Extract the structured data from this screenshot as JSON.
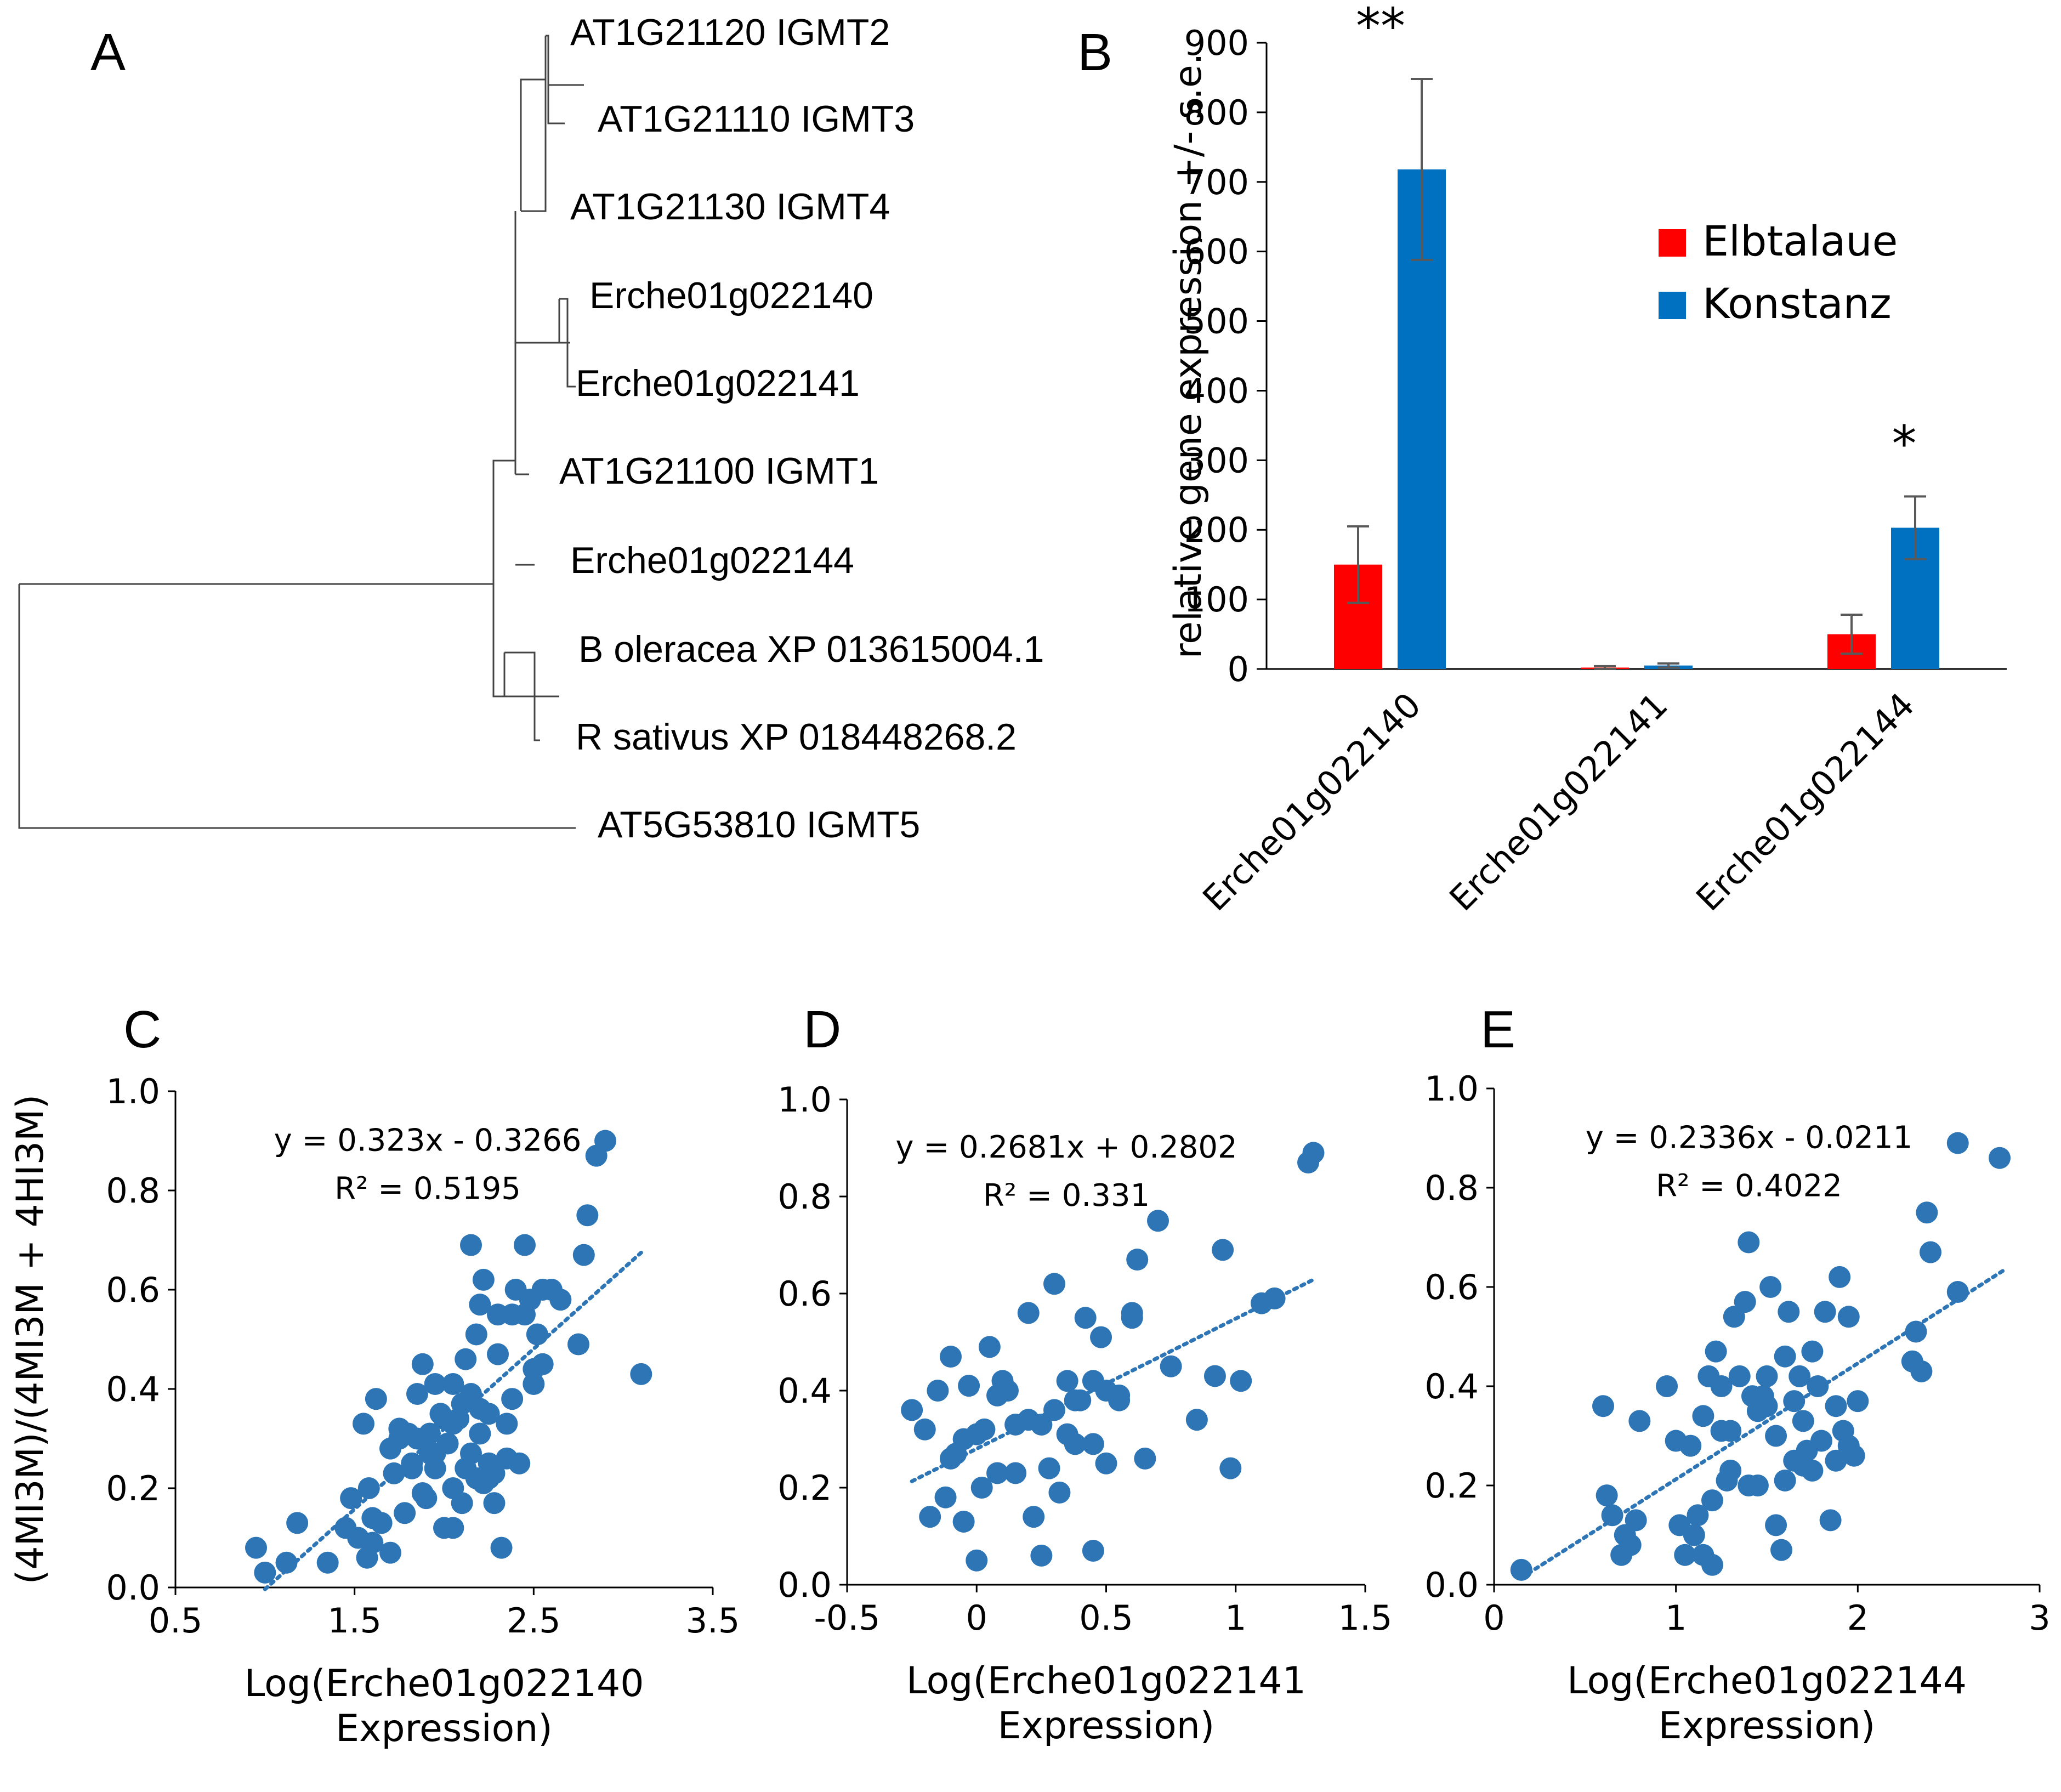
{
  "panels": {
    "a": {
      "letter": "A"
    },
    "b": {
      "letter": "B"
    },
    "c": {
      "letter": "C"
    },
    "d": {
      "letter": "D"
    },
    "e": {
      "letter": "E"
    }
  },
  "tree": {
    "leaves": [
      "AT1G21120 IGMT2",
      "AT1G21110 IGMT3",
      "AT1G21130 IGMT4",
      "Erche01g022140",
      "Erche01g022141",
      "AT1G21100 IGMT1",
      "Erche01g022144",
      "B oleracea XP 013615004.1",
      "R sativus XP 018448268.2",
      "AT5G53810 IGMT5"
    ]
  },
  "colors": {
    "elbtalaue": "#ff0000",
    "konstanz": "#0070c0",
    "scatter": "#2e75b6",
    "errorbar": "#595959"
  },
  "chart_data": [
    {
      "id": "B",
      "type": "bar",
      "categories": [
        "Erche01g022140",
        "Erche01g022141",
        "Erche01g022144"
      ],
      "series": [
        {
          "name": "Elbtalaue",
          "values": [
            150,
            2,
            50
          ],
          "errors": [
            55,
            2,
            28
          ]
        },
        {
          "name": "Konstanz",
          "values": [
            718,
            5,
            203
          ],
          "errors": [
            130,
            3,
            45
          ]
        }
      ],
      "significance": [
        "**",
        "",
        "*"
      ],
      "ylabel": "relative gene expression +/- s.e.",
      "ylim": [
        0,
        900
      ],
      "yticks": [
        0,
        100,
        200,
        300,
        400,
        500,
        600,
        700,
        800,
        900
      ],
      "ytick_labels": [
        "0",
        "100",
        "200",
        "300",
        "400",
        "500",
        "600",
        "700",
        "800",
        "900"
      ],
      "legend": [
        "Elbtalaue",
        "Konstanz"
      ],
      "legend_position": "top-right"
    },
    {
      "id": "C",
      "type": "scatter",
      "xlabel_line1": "Log(Erche01g022140",
      "xlabel_line2": "Expression)",
      "ylabel": "(4MI3M)/(4MI3M + 4HI3M)",
      "xlim": [
        0.5,
        3.5
      ],
      "ylim": [
        0.0,
        1.0
      ],
      "xticks": [
        0.5,
        1.5,
        2.5,
        3.5
      ],
      "xtick_labels": [
        "0.5",
        "1.5",
        "2.5",
        "3.5"
      ],
      "yticks": [
        0.0,
        0.2,
        0.4,
        0.6,
        0.8,
        1.0
      ],
      "ytick_labels": [
        "0.0",
        "0.2",
        "0.4",
        "0.6",
        "0.8",
        "1.0"
      ],
      "equation": "y = 0.323x - 0.3266",
      "r2": "R² = 0.5195",
      "trend": {
        "slope": 0.323,
        "intercept": -0.3266,
        "x_range": [
          1.0,
          3.1
        ]
      },
      "x": [
        0.95,
        1.0,
        1.12,
        1.18,
        1.35,
        1.45,
        1.48,
        1.52,
        1.55,
        1.57,
        1.58,
        1.6,
        1.62,
        1.65,
        1.7,
        1.72,
        1.75,
        1.78,
        1.8,
        1.82,
        1.85,
        1.88,
        1.9,
        1.92,
        1.95,
        1.95,
        1.98,
        2.0,
        2.02,
        2.05,
        2.05,
        2.08,
        2.1,
        2.12,
        2.15,
        2.15,
        2.18,
        2.2,
        2.2,
        2.22,
        2.25,
        2.25,
        2.28,
        2.3,
        2.3,
        2.32,
        2.35,
        2.38,
        2.4,
        2.42,
        2.45,
        2.48,
        2.5,
        2.52,
        2.55,
        2.6,
        2.65,
        2.75,
        2.78,
        2.8,
        2.85,
        2.9,
        3.1,
        1.88,
        1.95,
        2.05,
        2.1,
        2.18,
        2.22,
        2.28,
        2.35,
        2.45,
        1.7,
        1.85,
        2.0,
        2.12,
        2.25,
        1.6,
        1.75,
        2.38,
        2.5,
        2.55,
        1.92,
        2.15,
        1.82,
        2.05,
        2.2
      ],
      "y": [
        0.08,
        0.03,
        0.05,
        0.13,
        0.05,
        0.12,
        0.18,
        0.1,
        0.33,
        0.06,
        0.2,
        0.09,
        0.38,
        0.13,
        0.07,
        0.23,
        0.3,
        0.15,
        0.31,
        0.24,
        0.39,
        0.45,
        0.18,
        0.31,
        0.41,
        0.24,
        0.35,
        0.12,
        0.29,
        0.41,
        0.12,
        0.34,
        0.17,
        0.46,
        0.27,
        0.39,
        0.51,
        0.36,
        0.57,
        0.21,
        0.25,
        0.35,
        0.23,
        0.55,
        0.47,
        0.08,
        0.33,
        0.55,
        0.6,
        0.25,
        0.55,
        0.58,
        0.41,
        0.51,
        0.45,
        0.6,
        0.58,
        0.49,
        0.67,
        0.75,
        0.87,
        0.9,
        0.43,
        0.19,
        0.27,
        0.2,
        0.37,
        0.22,
        0.62,
        0.17,
        0.26,
        0.69,
        0.28,
        0.3,
        0.34,
        0.24,
        0.22,
        0.14,
        0.32,
        0.38,
        0.44,
        0.6,
        0.27,
        0.69,
        0.25,
        0.33,
        0.31
      ]
    },
    {
      "id": "D",
      "type": "scatter",
      "xlabel_line1": "Log(Erche01g022141",
      "xlabel_line2": "Expression)",
      "xlim": [
        -0.5,
        1.5
      ],
      "ylim": [
        0.0,
        1.0
      ],
      "xticks": [
        -0.5,
        0,
        0.5,
        1,
        1.5
      ],
      "xtick_labels": [
        "-0.5",
        "0",
        "0.5",
        "1",
        "1.5"
      ],
      "yticks": [
        0.0,
        0.2,
        0.4,
        0.6,
        0.8,
        1.0
      ],
      "ytick_labels": [
        "0.0",
        "0.2",
        "0.4",
        "0.6",
        "0.8",
        "1.0"
      ],
      "equation": "y = 0.2681x + 0.2802",
      "r2": "R² = 0.331",
      "trend": {
        "slope": 0.2681,
        "intercept": 0.2802,
        "x_range": [
          -0.25,
          1.3
        ]
      },
      "x": [
        -0.25,
        -0.2,
        -0.18,
        -0.15,
        -0.12,
        -0.1,
        -0.1,
        -0.05,
        -0.05,
        -0.03,
        0.0,
        0.0,
        0.02,
        0.03,
        0.05,
        0.08,
        0.1,
        0.12,
        0.15,
        0.15,
        0.2,
        0.22,
        0.25,
        0.25,
        0.28,
        0.3,
        0.32,
        0.35,
        0.35,
        0.38,
        0.4,
        0.42,
        0.45,
        0.45,
        0.48,
        0.5,
        0.5,
        0.55,
        0.6,
        0.62,
        0.65,
        0.7,
        0.75,
        0.85,
        0.92,
        0.95,
        0.98,
        1.02,
        1.1,
        1.15,
        1.28,
        1.3,
        0.6,
        0.3,
        0.45,
        -0.08,
        0.08,
        0.2,
        0.38,
        0.55
      ],
      "y": [
        0.36,
        0.32,
        0.14,
        0.4,
        0.18,
        0.47,
        0.26,
        0.3,
        0.13,
        0.41,
        0.05,
        0.31,
        0.2,
        0.32,
        0.49,
        0.23,
        0.42,
        0.4,
        0.23,
        0.33,
        0.56,
        0.14,
        0.06,
        0.33,
        0.24,
        0.62,
        0.19,
        0.42,
        0.31,
        0.38,
        0.38,
        0.55,
        0.07,
        0.29,
        0.51,
        0.25,
        0.4,
        0.38,
        0.56,
        0.67,
        0.26,
        0.75,
        0.45,
        0.34,
        0.43,
        0.69,
        0.24,
        0.42,
        0.58,
        0.59,
        0.87,
        0.89,
        0.55,
        0.36,
        0.42,
        0.27,
        0.39,
        0.34,
        0.29,
        0.39
      ]
    },
    {
      "id": "E",
      "type": "scatter",
      "xlabel_line1": "Log(Erche01g022144",
      "xlabel_line2": "Expression)",
      "xlim": [
        0,
        3
      ],
      "ylim": [
        0.0,
        1.0
      ],
      "xticks": [
        0,
        1,
        2,
        3
      ],
      "xtick_labels": [
        "0",
        "1",
        "2",
        "3"
      ],
      "yticks": [
        0.0,
        0.2,
        0.4,
        0.6,
        0.8,
        1.0
      ],
      "ytick_labels": [
        "0.0",
        "0.2",
        "0.4",
        "0.6",
        "0.8",
        "1.0"
      ],
      "equation": "y = 0.2336x - 0.0211",
      "r2": "R² = 0.4022",
      "trend": {
        "slope": 0.2336,
        "intercept": -0.0211,
        "x_range": [
          0.15,
          2.8
        ]
      },
      "x": [
        0.15,
        0.6,
        0.62,
        0.65,
        0.7,
        0.72,
        0.75,
        0.78,
        0.8,
        0.95,
        1.0,
        1.02,
        1.05,
        1.08,
        1.1,
        1.12,
        1.15,
        1.18,
        1.2,
        1.22,
        1.25,
        1.25,
        1.28,
        1.3,
        1.32,
        1.35,
        1.38,
        1.4,
        1.4,
        1.42,
        1.45,
        1.48,
        1.5,
        1.52,
        1.55,
        1.55,
        1.58,
        1.6,
        1.62,
        1.65,
        1.65,
        1.68,
        1.7,
        1.72,
        1.75,
        1.78,
        1.8,
        1.82,
        1.85,
        1.88,
        1.9,
        1.92,
        1.95,
        1.98,
        2.0,
        2.32,
        2.35,
        2.38,
        2.4,
        2.55,
        2.55,
        2.78,
        1.3,
        1.5,
        1.7,
        1.95,
        1.2,
        1.6,
        1.88,
        1.45,
        2.3,
        1.75,
        1.15
      ],
      "y": [
        0.03,
        0.36,
        0.18,
        0.14,
        0.06,
        0.1,
        0.08,
        0.13,
        0.33,
        0.4,
        0.29,
        0.12,
        0.06,
        0.28,
        0.1,
        0.14,
        0.06,
        0.42,
        0.17,
        0.47,
        0.31,
        0.4,
        0.21,
        0.23,
        0.54,
        0.42,
        0.57,
        0.69,
        0.2,
        0.38,
        0.35,
        0.38,
        0.42,
        0.6,
        0.12,
        0.3,
        0.07,
        0.21,
        0.55,
        0.37,
        0.25,
        0.42,
        0.33,
        0.27,
        0.47,
        0.4,
        0.29,
        0.55,
        0.13,
        0.25,
        0.62,
        0.31,
        0.28,
        0.26,
        0.37,
        0.51,
        0.43,
        0.75,
        0.67,
        0.89,
        0.59,
        0.86,
        0.31,
        0.36,
        0.24,
        0.54,
        0.04,
        0.46,
        0.36,
        0.2,
        0.45,
        0.23,
        0.34
      ]
    }
  ]
}
